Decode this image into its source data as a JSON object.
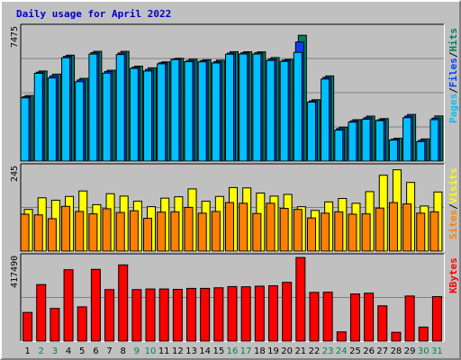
{
  "title": "Daily usage for April 2022",
  "colors": {
    "background": "#c0c0c0",
    "title": "#0000c0",
    "hits": "#00805c",
    "files": "#0040ff",
    "pages": "#00c0ff",
    "visits": "#ffff00",
    "sites": "#ff8000",
    "kbytes": "#ff0000",
    "weekend": "#00805c",
    "weekday": "#000000"
  },
  "legend": {
    "top": [
      {
        "text": "Pages",
        "color_key": "pages"
      },
      {
        "text": "/",
        "color_key": "weekday"
      },
      {
        "text": "Files",
        "color_key": "files"
      },
      {
        "text": "/",
        "color_key": "weekday"
      },
      {
        "text": "Hits",
        "color_key": "hits"
      }
    ],
    "middle": [
      {
        "text": "Sites",
        "color_key": "sites"
      },
      {
        "text": "/",
        "color_key": "weekday"
      },
      {
        "text": "Visits",
        "color_key": "visits"
      }
    ],
    "bottom": [
      {
        "text": "KBytes",
        "color_key": "kbytes"
      }
    ]
  },
  "chart_data": {
    "type": "bar",
    "title": "Daily usage for April 2022",
    "categories": [
      "1",
      "2",
      "3",
      "4",
      "5",
      "6",
      "7",
      "8",
      "9",
      "10",
      "11",
      "12",
      "13",
      "14",
      "15",
      "16",
      "17",
      "18",
      "19",
      "20",
      "21",
      "22",
      "23",
      "24",
      "25",
      "26",
      "27",
      "28",
      "29",
      "30",
      "31"
    ],
    "weekend_days": [
      "2",
      "3",
      "9",
      "10",
      "16",
      "17",
      "23",
      "24",
      "30",
      "31"
    ],
    "panels": [
      {
        "name": "top",
        "ymax_label": "7475",
        "ylim": [
          0,
          7475
        ],
        "series": [
          {
            "name": "Hits",
            "values": [
              3680,
              5055,
              4880,
              5945,
              4645,
              6160,
              5100,
              6160,
              5330,
              5235,
              5570,
              5770,
              5720,
              5690,
              5665,
              6140,
              6135,
              6130,
              5810,
              5705,
              7060,
              3445,
              4780,
              1905,
              2325,
              2525,
              2385,
              1280,
              2620,
              1245,
              2535
            ]
          },
          {
            "name": "Files",
            "values": [
              3615,
              4990,
              4780,
              5875,
              4555,
              6085,
              5025,
              6070,
              5265,
              5145,
              5520,
              5740,
              5645,
              5635,
              5575,
              6060,
              6080,
              6080,
              5725,
              5660,
              6685,
              3380,
              4695,
              1820,
              2255,
              2435,
              2325,
              1230,
              2525,
              1165,
              2415
            ]
          },
          {
            "name": "Pages",
            "values": [
              3550,
              4925,
              4670,
              5800,
              4455,
              6005,
              4935,
              5980,
              5200,
              5055,
              5460,
              5700,
              5575,
              5570,
              5505,
              6000,
              6010,
              6005,
              5645,
              5595,
              6100,
              3310,
              4605,
              1740,
              2185,
              2350,
              2270,
              1180,
              2435,
              1095,
              2325
            ]
          }
        ]
      },
      {
        "name": "middle",
        "ymax_label": "245",
        "ylim": [
          0,
          245
        ],
        "series": [
          {
            "name": "Visits",
            "values": [
              122,
              156,
              149,
              160,
              176,
              136,
              168,
              161,
              146,
              130,
              155,
              159,
              182,
              146,
              160,
              186,
              185,
              170,
              161,
              166,
              130,
              119,
              144,
              154,
              140,
              174,
              222,
              238,
              201,
              132,
              173
            ]
          },
          {
            "name": "Sites",
            "values": [
              108,
              106,
              95,
              131,
              116,
              109,
              124,
              113,
              118,
              96,
              114,
              115,
              128,
              111,
              116,
              142,
              140,
              110,
              140,
              125,
              122,
              97,
              111,
              115,
              108,
              109,
              126,
              142,
              138,
              111,
              115
            ]
          }
        ]
      },
      {
        "name": "bottom",
        "ymax_label": "417490",
        "ylim": [
          0,
          417490
        ],
        "series": [
          {
            "name": "KBytes",
            "values": [
              143000,
              282000,
              163000,
              356000,
              171000,
              358000,
              257000,
              380000,
              257000,
              260000,
              260000,
              258000,
              263000,
              263000,
              266000,
              272000,
              271000,
              274000,
              276000,
              293000,
              417000,
              243000,
              244000,
              46000,
              235000,
              239000,
              176000,
              44000,
              225000,
              70000,
              222000
            ]
          }
        ]
      }
    ]
  }
}
